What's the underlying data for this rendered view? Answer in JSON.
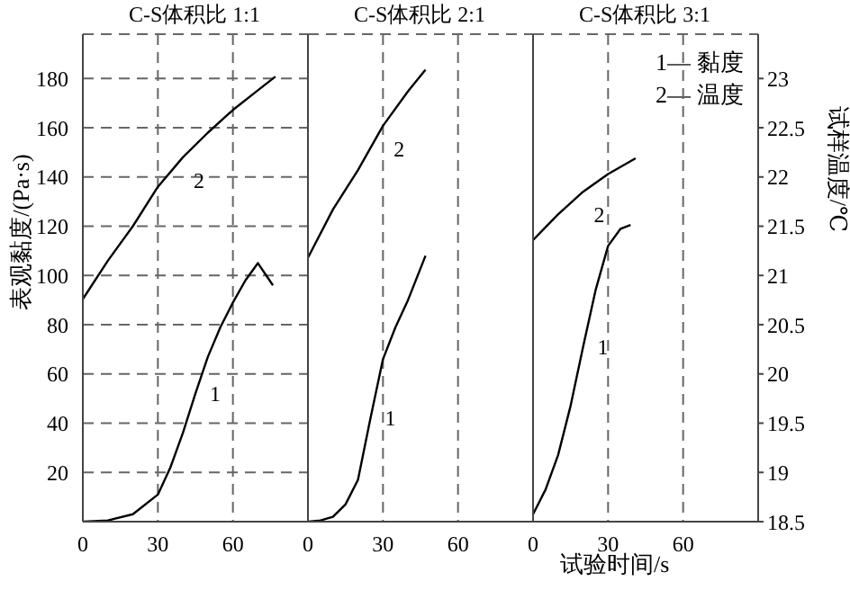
{
  "chart_data": [
    {
      "type": "line",
      "title": "C-S体积比 1:1",
      "ylabel": "表观黏度/(Pa·s)",
      "xlim": [
        0,
        90
      ],
      "xticks": [
        0,
        30,
        60
      ],
      "ylim": [
        0,
        198
      ],
      "yticks": [
        20,
        40,
        60,
        80,
        100,
        120,
        140,
        160,
        180
      ],
      "y2lim": [
        18.5,
        23.45
      ],
      "grid": true,
      "tick_labels": "xy",
      "series": [
        {
          "name": "1",
          "color": "#000000",
          "axis": "y",
          "x": [
            0,
            10,
            20,
            30,
            35,
            40,
            45,
            50,
            55,
            60,
            65,
            70,
            76
          ],
          "values": [
            0,
            0.5,
            3,
            11,
            22,
            36,
            52,
            67,
            79,
            89,
            98,
            105,
            96
          ]
        },
        {
          "name": "2",
          "color": "#000000",
          "axis": "y2",
          "x": [
            0,
            10,
            20,
            30,
            40,
            50,
            60,
            70,
            77
          ],
          "values": [
            20.76,
            21.15,
            21.5,
            21.9,
            22.2,
            22.45,
            22.68,
            22.88,
            23.02
          ]
        }
      ]
    },
    {
      "type": "line",
      "title": "C-S体积比 2:1",
      "xlim": [
        0,
        90
      ],
      "xticks": [
        0,
        30,
        60
      ],
      "ylim": [
        0,
        198
      ],
      "yticks": [
        20,
        40,
        60,
        80,
        100,
        120,
        140,
        160,
        180
      ],
      "y2lim": [
        18.5,
        23.45
      ],
      "grid": true,
      "tick_labels": "x",
      "series": [
        {
          "name": "1",
          "color": "#000000",
          "axis": "y",
          "x": [
            0,
            5,
            10,
            15,
            20,
            25,
            30,
            35,
            40,
            47
          ],
          "values": [
            0,
            0.5,
            2,
            7,
            17,
            42,
            66,
            79,
            90,
            108
          ]
        },
        {
          "name": "2",
          "color": "#000000",
          "axis": "y2",
          "x": [
            0,
            10,
            20,
            30,
            40,
            47
          ],
          "values": [
            21.18,
            21.67,
            22.07,
            22.52,
            22.87,
            23.09
          ]
        }
      ]
    },
    {
      "type": "line",
      "title": "C-S体积比 3:1",
      "xlabel": "试验时间/s",
      "y2label": "试样温度/℃",
      "annotations": [
        "1— 黏度",
        "2— 温度"
      ],
      "xlim": [
        0,
        90
      ],
      "xticks": [
        0,
        30,
        60
      ],
      "ylim": [
        0,
        198
      ],
      "y2lim": [
        18.5,
        23.45
      ],
      "y2ticks": [
        18.5,
        19,
        19.5,
        20,
        20.5,
        21,
        21.5,
        22,
        22.5,
        23
      ],
      "grid": true,
      "tick_labels": "xy2",
      "series": [
        {
          "name": "1",
          "color": "#000000",
          "axis": "y",
          "x": [
            0,
            5,
            10,
            15,
            20,
            25,
            30,
            35,
            39
          ],
          "values": [
            3,
            13,
            27,
            47,
            71,
            94,
            112,
            119,
            120.5
          ]
        },
        {
          "name": "2",
          "color": "#000000",
          "axis": "y2",
          "x": [
            0,
            10,
            20,
            30,
            41
          ],
          "values": [
            21.36,
            21.62,
            21.85,
            22.03,
            22.19
          ]
        }
      ]
    }
  ]
}
